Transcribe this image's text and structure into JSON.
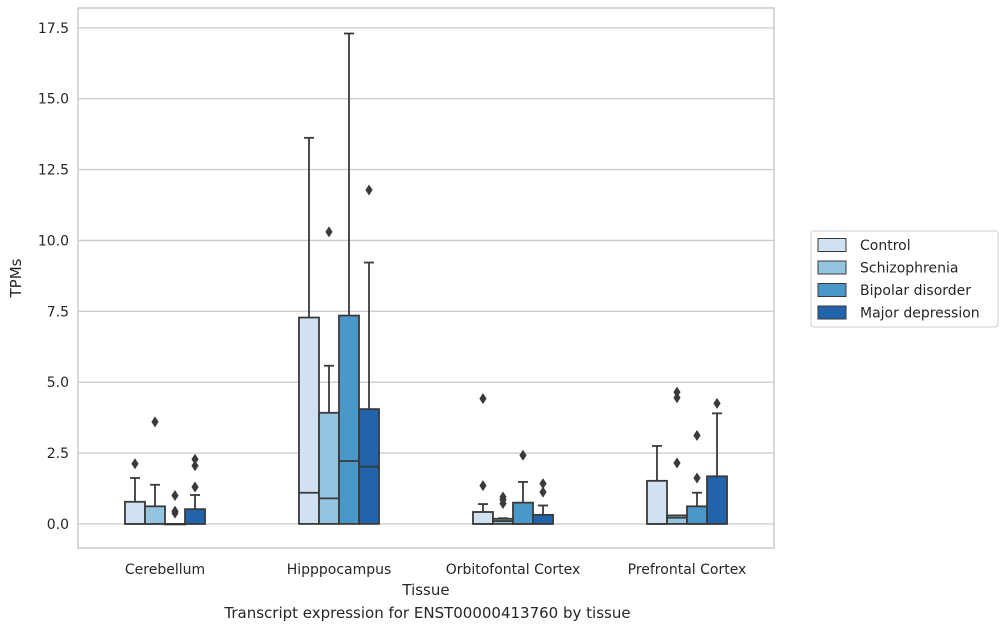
{
  "caption": "Transcript expression for ENST00000413760 by tissue",
  "chart_data": {
    "type": "box",
    "xlabel": "Tissue",
    "ylabel": "TPMs",
    "ylim": [
      -0.85,
      18.2
    ],
    "yticks": [
      0.0,
      2.5,
      5.0,
      7.5,
      10.0,
      12.5,
      15.0,
      17.5
    ],
    "ytick_labels": [
      "0.0",
      "2.5",
      "5.0",
      "7.5",
      "10.0",
      "12.5",
      "15.0",
      "17.5"
    ],
    "grid": "horizontal",
    "legend_position": "right",
    "categories": [
      "Cerebellum",
      "Hipppocampus",
      "Orbitofontal Cortex",
      "Prefrontal Cortex"
    ],
    "series": [
      {
        "name": "Control",
        "color": "#d0e1f2",
        "boxes": [
          {
            "q1": 0.0,
            "median": 0.0,
            "q3": 0.78,
            "whisker_low": 0.0,
            "whisker_high": 1.62,
            "outliers": [
              2.12
            ]
          },
          {
            "q1": 0.0,
            "median": 1.1,
            "q3": 7.28,
            "whisker_low": 0.0,
            "whisker_high": 13.62,
            "outliers": []
          },
          {
            "q1": 0.0,
            "median": 0.0,
            "q3": 0.42,
            "whisker_low": 0.0,
            "whisker_high": 0.7,
            "outliers": [
              4.42,
              1.35
            ]
          },
          {
            "q1": 0.0,
            "median": 0.0,
            "q3": 1.52,
            "whisker_low": 0.0,
            "whisker_high": 2.75,
            "outliers": []
          }
        ]
      },
      {
        "name": "Schizophrenia",
        "color": "#94c4df",
        "boxes": [
          {
            "q1": 0.0,
            "median": 0.0,
            "q3": 0.62,
            "whisker_low": 0.0,
            "whisker_high": 1.38,
            "outliers": [
              3.6
            ]
          },
          {
            "q1": 0.0,
            "median": 0.9,
            "q3": 3.92,
            "whisker_low": 0.0,
            "whisker_high": 5.58,
            "outliers": [
              10.3
            ]
          },
          {
            "q1": 0.0,
            "median": 0.1,
            "q3": 0.18,
            "whisker_low": 0.0,
            "whisker_high": 0.2,
            "outliers": [
              0.95,
              0.85,
              0.72
            ]
          },
          {
            "q1": 0.0,
            "median": 0.22,
            "q3": 0.3,
            "whisker_low": 0.0,
            "whisker_high": 0.3,
            "outliers": [
              4.65,
              4.45,
              2.15
            ]
          }
        ]
      },
      {
        "name": "Bipolar disorder",
        "color": "#4a98c9",
        "boxes": [
          {
            "q1": 0.0,
            "median": 0.0,
            "q3": 0.0,
            "whisker_low": 0.0,
            "whisker_high": 0.0,
            "outliers": [
              1.0,
              0.45,
              0.38
            ]
          },
          {
            "q1": 0.0,
            "median": 2.22,
            "q3": 7.35,
            "whisker_low": 0.0,
            "whisker_high": 17.3,
            "outliers": []
          },
          {
            "q1": 0.0,
            "median": 0.0,
            "q3": 0.75,
            "whisker_low": 0.0,
            "whisker_high": 1.48,
            "outliers": [
              2.42
            ]
          },
          {
            "q1": 0.0,
            "median": 0.0,
            "q3": 0.62,
            "whisker_low": 0.0,
            "whisker_high": 1.1,
            "outliers": [
              3.12,
              1.62
            ]
          }
        ]
      },
      {
        "name": "Major depression",
        "color": "#2164ab",
        "boxes": [
          {
            "q1": 0.0,
            "median": 0.0,
            "q3": 0.52,
            "whisker_low": 0.0,
            "whisker_high": 1.02,
            "outliers": [
              2.28,
              2.05,
              1.3
            ]
          },
          {
            "q1": 0.0,
            "median": 2.02,
            "q3": 4.05,
            "whisker_low": 0.0,
            "whisker_high": 9.22,
            "outliers": [
              11.78
            ]
          },
          {
            "q1": 0.0,
            "median": 0.0,
            "q3": 0.32,
            "whisker_low": 0.0,
            "whisker_high": 0.65,
            "outliers": [
              1.42,
              1.12
            ]
          },
          {
            "q1": 0.0,
            "median": 0.0,
            "q3": 1.68,
            "whisker_low": 0.0,
            "whisker_high": 3.9,
            "outliers": [
              4.25
            ]
          }
        ]
      }
    ]
  }
}
